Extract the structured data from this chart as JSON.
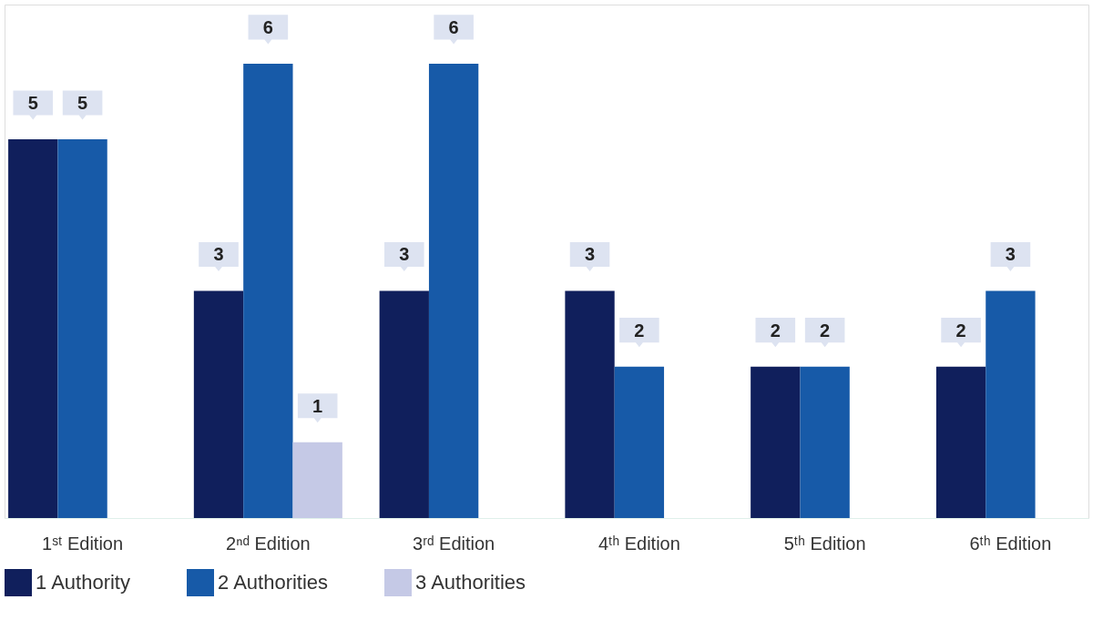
{
  "chart_data": {
    "type": "bar",
    "categories": [
      "1ˢᵗ Edition",
      "2ⁿᵈ Edition",
      "3ʳᵈ Edition",
      "4ᵗʰ Edition",
      "5ᵗʰ Edition",
      "6ᵗʰ Edition"
    ],
    "series": [
      {
        "name": "1 Authority",
        "color": "#101f5c",
        "values": [
          5,
          3,
          3,
          3,
          2,
          2
        ]
      },
      {
        "name": "2 Authorities",
        "color": "#175aa8",
        "values": [
          5,
          6,
          6,
          2,
          2,
          3
        ]
      },
      {
        "name": "3 Authorities",
        "color": "#c5c9e6",
        "values": [
          null,
          1,
          null,
          null,
          null,
          null
        ]
      }
    ],
    "data_labels": true,
    "legend": "bottom",
    "grid": false
  }
}
